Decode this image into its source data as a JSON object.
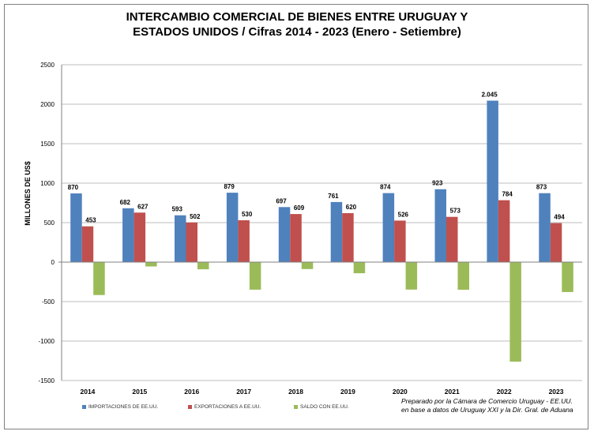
{
  "chart_data": {
    "type": "bar",
    "title_lines": [
      "INTERCAMBIO COMERCIAL DE BIENES ENTRE URUGUAY Y",
      "ESTADOS UNIDOS / Cifras 2014 - 2023 (Enero - Setiembre)"
    ],
    "ylabel": "MILLONES DE US$",
    "ylim": [
      -1500,
      2500
    ],
    "yticks": [
      "2500",
      "2000",
      "1500",
      "1000",
      "500",
      "0",
      "-500",
      "-1000",
      "-1500"
    ],
    "ytick_values": [
      2500,
      2000,
      1500,
      1000,
      500,
      0,
      -500,
      -1000,
      -1500
    ],
    "grid": true,
    "legend_position": "bottom-left",
    "categories": [
      "2014",
      "2015",
      "2016",
      "2017",
      "2018",
      "2019",
      "2020",
      "2021",
      "2022",
      "2023"
    ],
    "series": [
      {
        "name": "IMPORTACIONES DE EE.UU.",
        "color": "#4F81BD",
        "values": [
          870,
          682,
          593,
          879,
          697,
          761,
          874,
          923,
          2045,
          873
        ],
        "labels": [
          "870",
          "682",
          "593",
          "879",
          "697",
          "761",
          "874",
          "923",
          "2.045",
          "873"
        ]
      },
      {
        "name": "EXPORTACIONES A EE.UU.",
        "color": "#C0504D",
        "values": [
          453,
          627,
          502,
          530,
          609,
          620,
          526,
          573,
          784,
          494
        ],
        "labels": [
          "453",
          "627",
          "502",
          "530",
          "609",
          "620",
          "526",
          "573",
          "784",
          "494"
        ]
      },
      {
        "name": "SALDO CON EE.UU.",
        "color": "#9BBB59",
        "values": [
          -417,
          -55,
          -91,
          -349,
          -88,
          -141,
          -348,
          -350,
          -1261,
          -379
        ],
        "labels": []
      }
    ]
  },
  "credit": {
    "line1": "Preparado por la Cámara de Comercio Uruguay - EE.UU.",
    "line2": "en base  a datos de Uruguay XXI y la Dir. Gral. de Aduana"
  }
}
